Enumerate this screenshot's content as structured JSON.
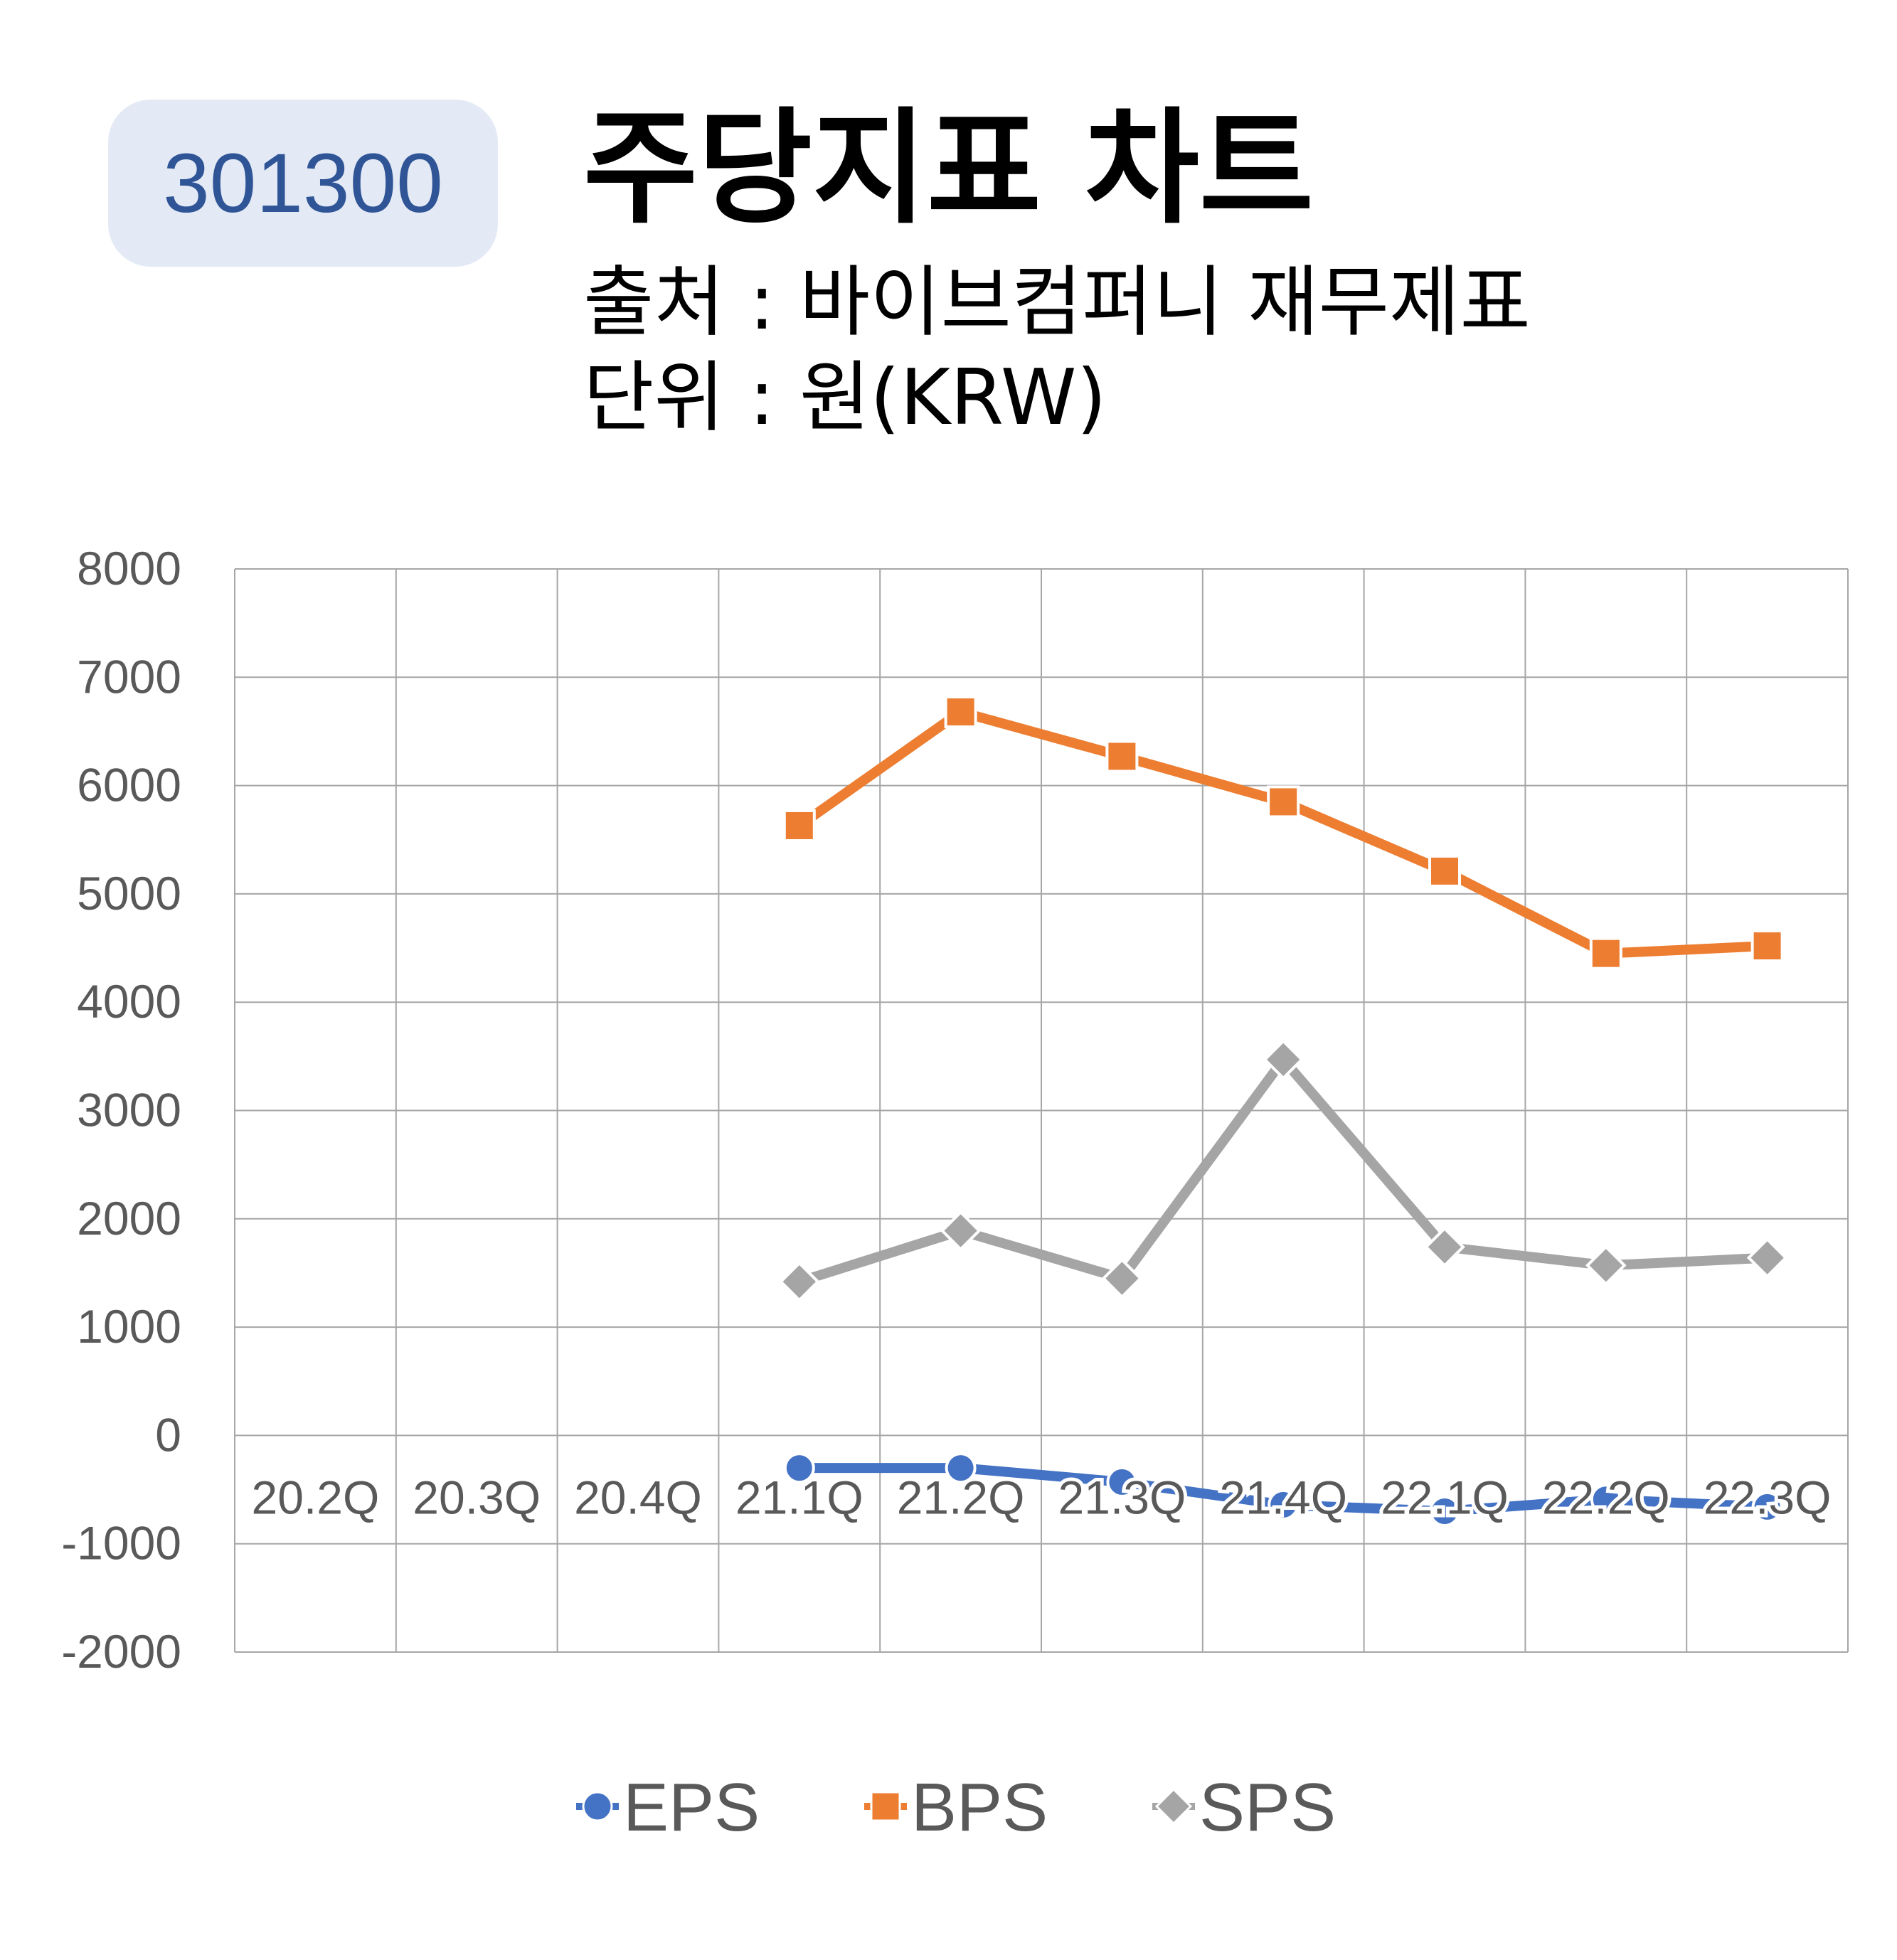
{
  "header": {
    "code": "301300",
    "title": "주당지표 차트",
    "source": "출처 : 바이브컴퍼니 재무제표",
    "unit": "단위 : 원(KRW)"
  },
  "chart_data": {
    "type": "line",
    "categories": [
      "20.2Q",
      "20.3Q",
      "20.4Q",
      "21.1Q",
      "21.2Q",
      "21.3Q",
      "21.4Q",
      "22.1Q",
      "22.2Q",
      "22.3Q"
    ],
    "ylim": [
      -2000,
      8000
    ],
    "yticks": [
      "8000",
      "7000",
      "6000",
      "5000",
      "4000",
      "3000",
      "2000",
      "1000",
      "0",
      "-1000",
      "-2000"
    ],
    "grid": true,
    "legend_position": "bottom",
    "series": [
      {
        "name": "EPS",
        "color": "#4472c4",
        "marker": "circle",
        "values": [
          null,
          null,
          null,
          -300,
          -300,
          -430,
          -640,
          -700,
          -590,
          -660
        ]
      },
      {
        "name": "BPS",
        "color": "#ed7d31",
        "marker": "square",
        "values": [
          null,
          null,
          null,
          5630,
          6680,
          6270,
          5850,
          5210,
          4450,
          4520
        ]
      },
      {
        "name": "SPS",
        "color": "#a5a5a5",
        "marker": "diamond",
        "values": [
          null,
          null,
          null,
          1420,
          1890,
          1450,
          3470,
          1740,
          1570,
          1640
        ]
      }
    ]
  }
}
